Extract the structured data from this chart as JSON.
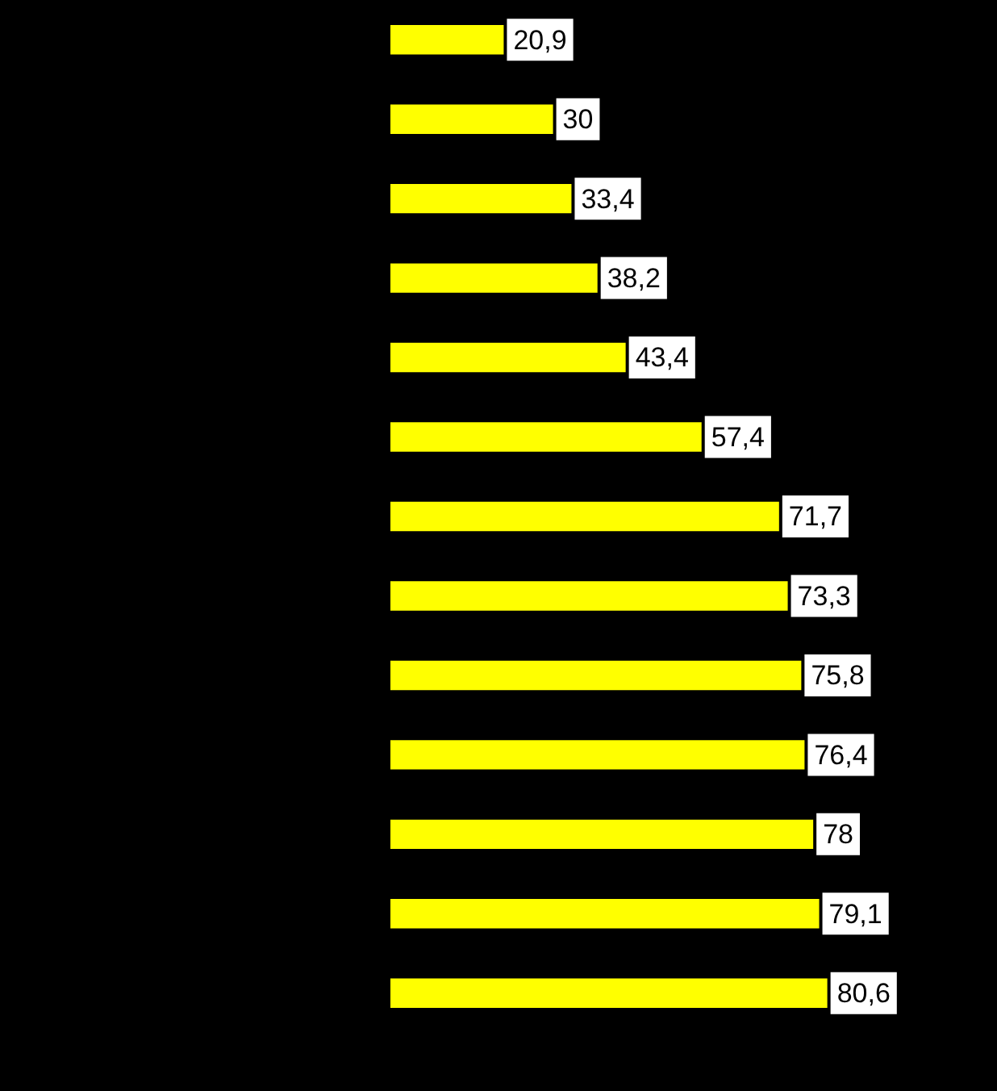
{
  "chart_data": {
    "type": "bar",
    "orientation": "horizontal",
    "categories": [
      null,
      null,
      null,
      null,
      null,
      null,
      null,
      null,
      null,
      null,
      null,
      null,
      null
    ],
    "values": [
      20.9,
      30,
      33.4,
      38.2,
      43.4,
      57.4,
      71.7,
      73.3,
      75.8,
      76.4,
      78,
      79.1,
      80.6
    ],
    "value_labels": [
      "20,9",
      "30",
      "33,4",
      "38,2",
      "43,4",
      "57,4",
      "71,7",
      "73,3",
      "75,8",
      "76,4",
      "78",
      "79,1",
      "80,6"
    ],
    "color": "#ffff00",
    "legend": false,
    "tick_labels": false
  }
}
